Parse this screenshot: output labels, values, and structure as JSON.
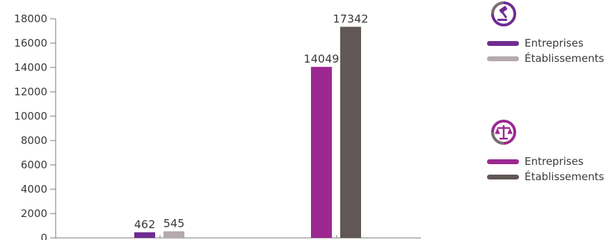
{
  "chart_data": {
    "type": "bar",
    "title": "",
    "xlabel": "",
    "ylabel": "",
    "ylim": [
      0,
      18000
    ],
    "yticks": [
      "0",
      "2000",
      "4000",
      "6000",
      "8000",
      "10000",
      "12000",
      "14000",
      "16000",
      "18000"
    ],
    "categories": [
      "",
      ""
    ],
    "bars": [
      {
        "group": 0,
        "slot": 0,
        "value": 462,
        "label": "462",
        "color": "#6f2c91"
      },
      {
        "group": 0,
        "slot": 1,
        "value": 545,
        "label": "545",
        "color": "#b4aaab"
      },
      {
        "group": 1,
        "slot": 0,
        "value": 14049,
        "label": "14049",
        "color": "#9b2890"
      },
      {
        "group": 1,
        "slot": 1,
        "value": 17342,
        "label": "17342",
        "color": "#615756"
      }
    ],
    "legend_position": "right"
  },
  "legend": {
    "groups": [
      {
        "icon": "gavel-icon",
        "items": [
          {
            "label": "Entreprises",
            "color": "#6f2c91"
          },
          {
            "label": "Établissements",
            "color": "#b4aaab"
          }
        ]
      },
      {
        "icon": "scales-icon",
        "items": [
          {
            "label": "Entreprises",
            "color": "#9b2890"
          },
          {
            "label": "Établissements",
            "color": "#615756"
          }
        ]
      }
    ]
  }
}
